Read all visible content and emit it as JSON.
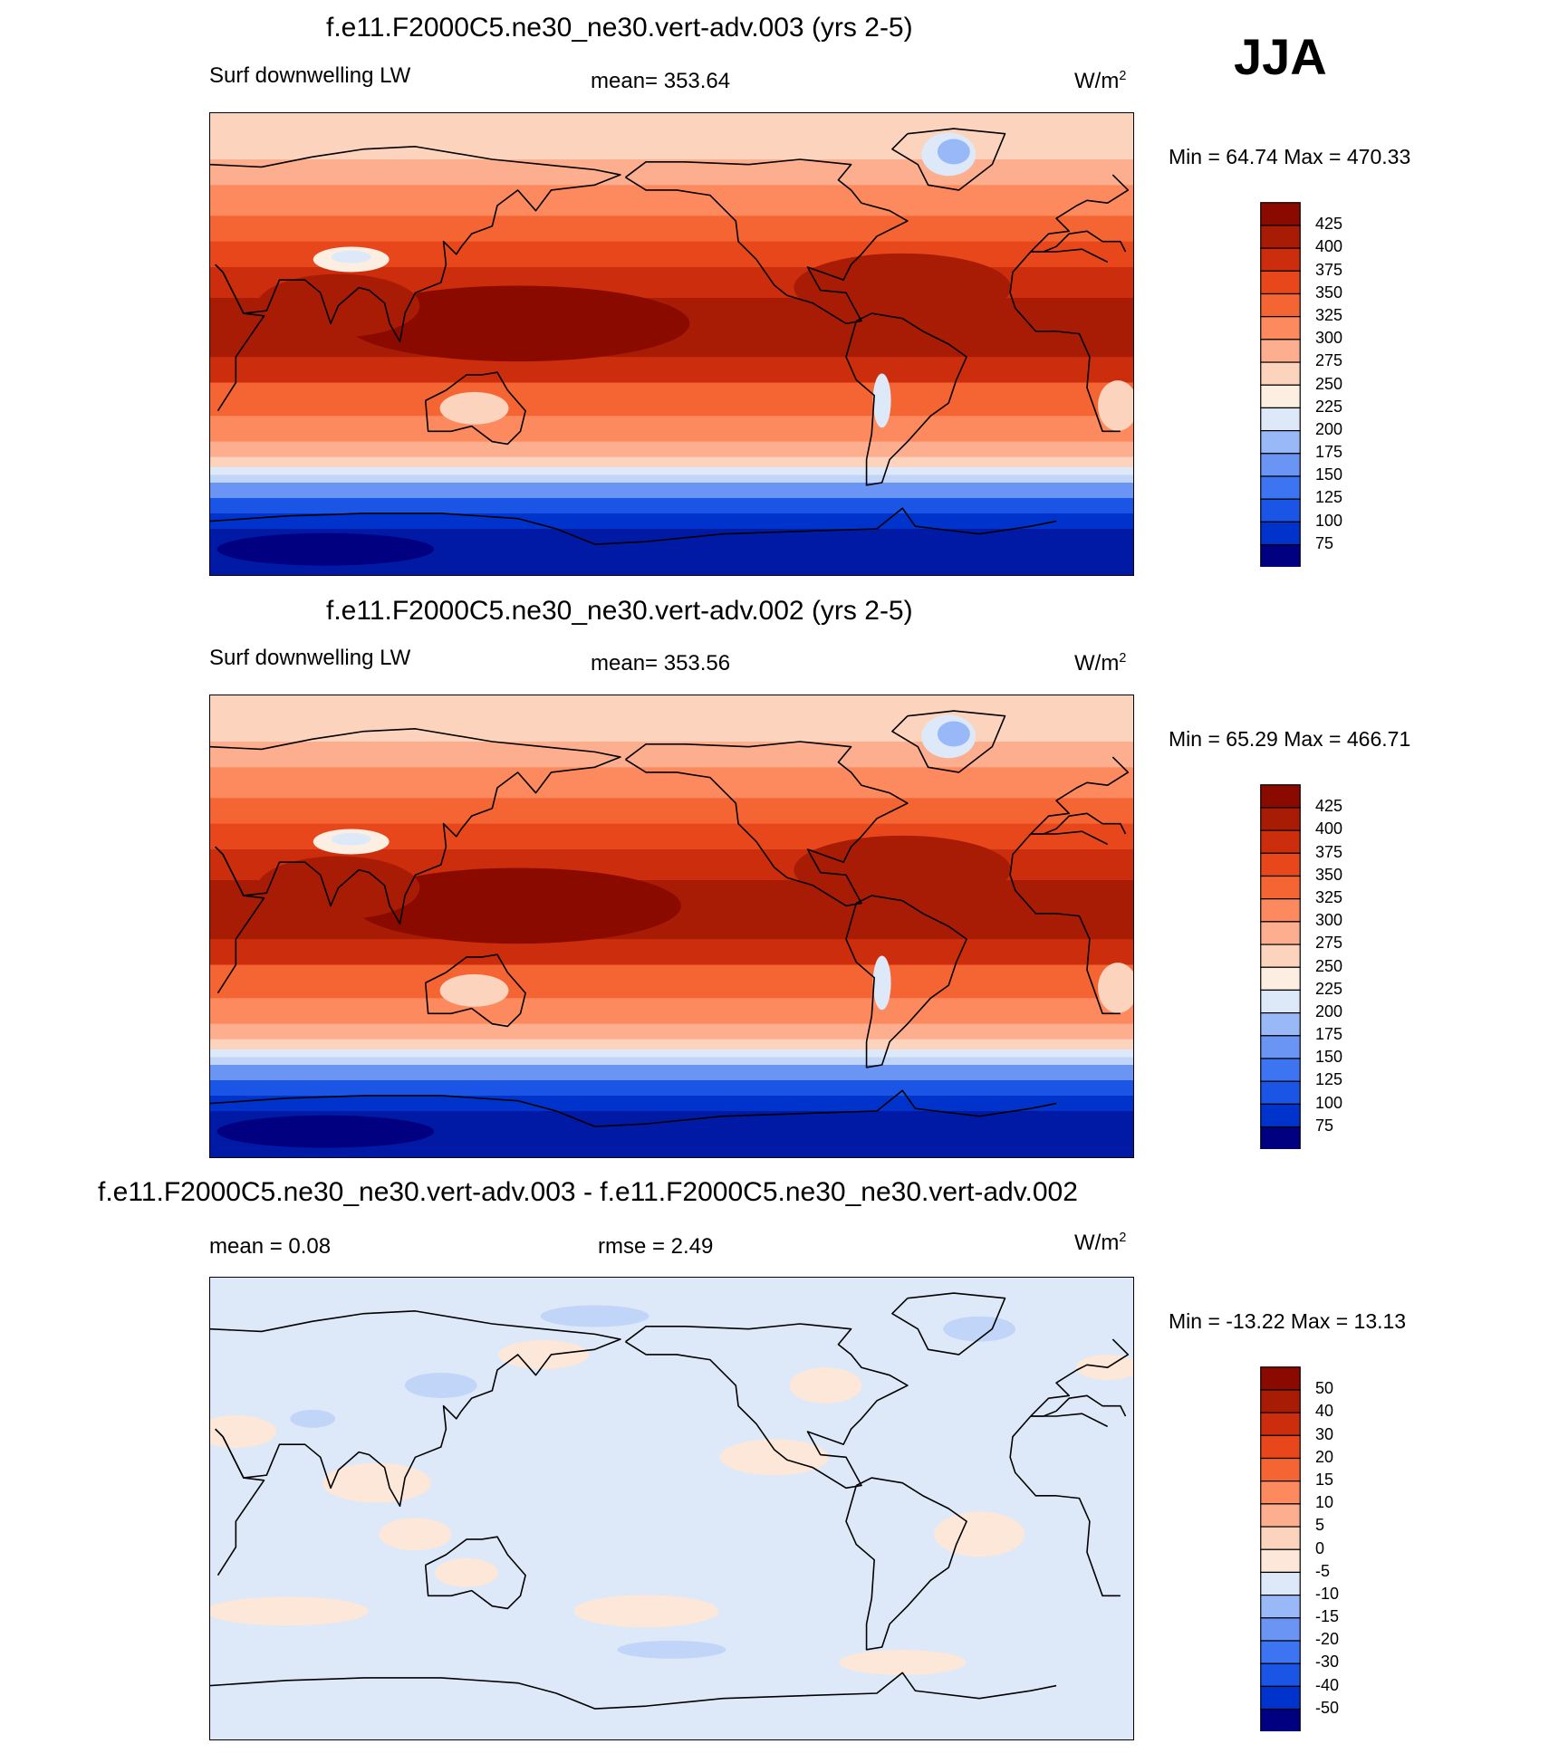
{
  "season": "JJA",
  "units": "W/m",
  "units_sup": "2",
  "colors": {
    "abs": [
      "#000080",
      "#001aa5",
      "#0033cc",
      "#1a55e6",
      "#3d74f2",
      "#6b95f5",
      "#98b8f7",
      "#c0d5f7",
      "#dde9f8",
      "#fcefe2",
      "#fcd3bd",
      "#fcae8f",
      "#fc8a5e",
      "#f56534",
      "#e8471c",
      "#cc2d0c",
      "#a81b05",
      "#8a0a00"
    ],
    "diff": [
      "#000080",
      "#001aa5",
      "#0033cc",
      "#1a55e6",
      "#3d74f2",
      "#6b95f5",
      "#98b8f7",
      "#c0d5f7",
      "#dde9f8",
      "#fde7d8",
      "#fcd3bd",
      "#fcae8f",
      "#fc8a5e",
      "#f56534",
      "#e8471c",
      "#cc2d0c",
      "#a81b05",
      "#8a0a00"
    ]
  },
  "panels": [
    {
      "title": "f.e11.F2000C5.ne30_ne30.vert-adv.003 (yrs 2-5)",
      "left_label": "Surf downwelling LW",
      "stat": "mean= 353.64",
      "minmax": "Min =  64.74 Max = 470.33"
    },
    {
      "title": "f.e11.F2000C5.ne30_ne30.vert-adv.002 (yrs 2-5)",
      "left_label": "Surf downwelling LW",
      "stat": "mean= 353.56",
      "minmax": "Min =  65.29 Max = 466.71"
    },
    {
      "title": "f.e11.F2000C5.ne30_ne30.vert-adv.003 - f.e11.F2000C5.ne30_ne30.vert-adv.002",
      "left_label": "mean =   0.08",
      "stat": "rmse =   2.49",
      "minmax": "Min = -13.22 Max =  13.13"
    }
  ],
  "colorbars": {
    "abs_ticks": [
      "425",
      "400",
      "375",
      "350",
      "325",
      "300",
      "275",
      "250",
      "225",
      "200",
      "175",
      "150",
      "125",
      "100",
      "75"
    ],
    "diff_ticks": [
      "50",
      "40",
      "30",
      "20",
      "15",
      "10",
      "5",
      "0",
      "-5",
      "-10",
      "-15",
      "-20",
      "-30",
      "-40",
      "-50"
    ]
  }
}
